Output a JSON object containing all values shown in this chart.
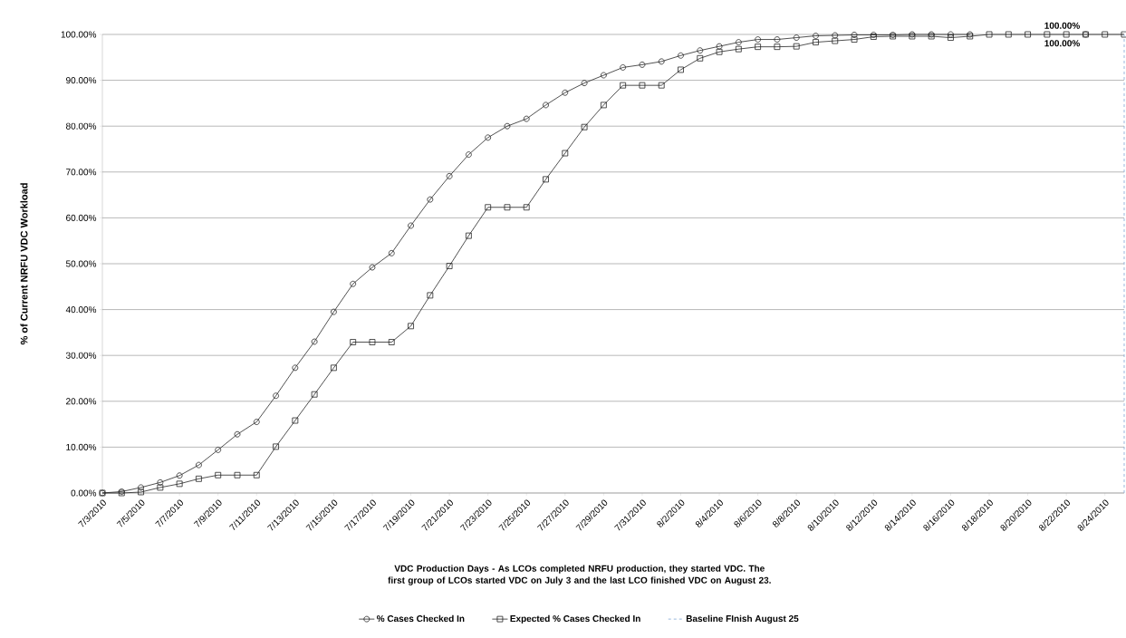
{
  "chart_data": {
    "type": "line",
    "ylabel": "% of Current  NRFU VDC Workload",
    "xlabel": "VDC Production  Days - As LCOs completed  NRFU production, they started VDC.  The first group of LCOs started VDC on July 3 and the last LCO finished VDC on August 23.",
    "x": [
      "2010-07-03",
      "2010-07-04",
      "2010-07-05",
      "2010-07-06",
      "2010-07-07",
      "2010-07-08",
      "2010-07-09",
      "2010-07-10",
      "2010-07-11",
      "2010-07-12",
      "2010-07-13",
      "2010-07-14",
      "2010-07-15",
      "2010-07-16",
      "2010-07-17",
      "2010-07-18",
      "2010-07-19",
      "2010-07-20",
      "2010-07-21",
      "2010-07-22",
      "2010-07-23",
      "2010-07-24",
      "2010-07-25",
      "2010-07-26",
      "2010-07-27",
      "2010-07-28",
      "2010-07-29",
      "2010-07-30",
      "2010-07-31",
      "2010-08-01",
      "2010-08-02",
      "2010-08-03",
      "2010-08-04",
      "2010-08-05",
      "2010-08-06",
      "2010-08-07",
      "2010-08-08",
      "2010-08-09",
      "2010-08-10",
      "2010-08-11",
      "2010-08-12",
      "2010-08-13",
      "2010-08-14",
      "2010-08-15",
      "2010-08-16",
      "2010-08-17",
      "2010-08-18",
      "2010-08-19",
      "2010-08-20",
      "2010-08-21",
      "2010-08-22",
      "2010-08-23",
      "2010-08-24",
      "2010-08-25"
    ],
    "series": [
      {
        "name": "% Cases Checked In",
        "color": "#262626",
        "marker": "circle",
        "values": [
          0,
          0.3,
          1.2,
          2.3,
          3.8,
          6.1,
          9.4,
          12.8,
          15.5,
          21.2,
          27.3,
          33.0,
          39.5,
          45.6,
          49.2,
          52.3,
          58.3,
          64.0,
          69.1,
          73.8,
          77.5,
          80.0,
          81.6,
          84.6,
          87.3,
          89.4,
          91.1,
          92.8,
          93.4,
          94.1,
          95.4,
          96.5,
          97.4,
          98.3,
          98.9,
          98.9,
          99.3,
          99.7,
          99.8,
          99.9,
          99.9,
          99.9,
          100,
          100,
          100,
          100,
          null,
          null,
          null,
          null,
          null,
          100,
          null,
          null
        ],
        "value_labels": [
          null,
          null,
          null,
          null,
          null,
          null,
          null,
          null,
          null,
          null,
          null,
          null,
          null,
          null,
          null,
          null,
          null,
          null,
          null,
          null,
          null,
          null,
          null,
          null,
          null,
          null,
          null,
          null,
          null,
          null,
          null,
          null,
          null,
          null,
          null,
          null,
          null,
          null,
          null,
          null,
          null,
          null,
          null,
          null,
          null,
          null,
          null,
          null,
          null,
          null,
          null,
          "100.00%",
          null,
          null
        ]
      },
      {
        "name": "Expected % Cases Checked In",
        "color": "#262626",
        "marker": "square",
        "values": [
          0,
          0,
          0.2,
          1.2,
          2.0,
          3.1,
          3.9,
          3.9,
          3.9,
          10.1,
          15.8,
          21.5,
          27.3,
          32.9,
          32.9,
          32.9,
          36.4,
          43.1,
          49.5,
          56.1,
          62.3,
          62.3,
          62.3,
          68.4,
          74.1,
          79.8,
          84.6,
          88.9,
          88.9,
          88.9,
          92.3,
          94.8,
          96.2,
          96.8,
          97.3,
          97.3,
          97.4,
          98.3,
          98.6,
          98.9,
          99.5,
          99.6,
          99.6,
          99.6,
          99.3,
          99.6,
          100,
          100,
          100,
          100,
          100,
          100,
          100,
          100
        ],
        "value_labels": [
          null,
          null,
          null,
          null,
          null,
          null,
          null,
          null,
          null,
          null,
          null,
          null,
          null,
          null,
          null,
          null,
          null,
          null,
          null,
          null,
          null,
          null,
          null,
          null,
          null,
          null,
          null,
          null,
          null,
          null,
          null,
          null,
          null,
          null,
          null,
          null,
          null,
          null,
          null,
          null,
          null,
          null,
          null,
          null,
          null,
          null,
          null,
          null,
          null,
          null,
          null,
          "100.00%",
          null,
          null
        ]
      }
    ],
    "xlim": [
      "2010-07-03",
      "2010-08-25"
    ],
    "xticks": [
      {
        "value": "2010-07-03",
        "label": "7/3/2010"
      },
      {
        "value": "2010-07-05",
        "label": "7/5/2010"
      },
      {
        "value": "2010-07-07",
        "label": "7/7/2010"
      },
      {
        "value": "2010-07-09",
        "label": "7/9/2010"
      },
      {
        "value": "2010-07-11",
        "label": "7/11/2010"
      },
      {
        "value": "2010-07-13",
        "label": "7/13/2010"
      },
      {
        "value": "2010-07-15",
        "label": "7/15/2010"
      },
      {
        "value": "2010-07-17",
        "label": "7/17/2010"
      },
      {
        "value": "2010-07-19",
        "label": "7/19/2010"
      },
      {
        "value": "2010-07-21",
        "label": "7/21/2010"
      },
      {
        "value": "2010-07-23",
        "label": "7/23/2010"
      },
      {
        "value": "2010-07-25",
        "label": "7/25/2010"
      },
      {
        "value": "2010-07-27",
        "label": "7/27/2010"
      },
      {
        "value": "2010-07-29",
        "label": "7/29/2010"
      },
      {
        "value": "2010-07-31",
        "label": "7/31/2010"
      },
      {
        "value": "2010-08-02",
        "label": "8/2/2010"
      },
      {
        "value": "2010-08-04",
        "label": "8/4/2010"
      },
      {
        "value": "2010-08-06",
        "label": "8/6/2010"
      },
      {
        "value": "2010-08-08",
        "label": "8/8/2010"
      },
      {
        "value": "2010-08-10",
        "label": "8/10/2010"
      },
      {
        "value": "2010-08-12",
        "label": "8/12/2010"
      },
      {
        "value": "2010-08-14",
        "label": "8/14/2010"
      },
      {
        "value": "2010-08-16",
        "label": "8/16/2010"
      },
      {
        "value": "2010-08-18",
        "label": "8/18/2010"
      },
      {
        "value": "2010-08-20",
        "label": "8/20/2010"
      },
      {
        "value": "2010-08-22",
        "label": "8/22/2010"
      },
      {
        "value": "2010-08-24",
        "label": "8/24/2010"
      }
    ],
    "ylim": [
      0,
      100
    ],
    "yticks": [
      {
        "value": 0,
        "label": "0.00%"
      },
      {
        "value": 10,
        "label": "10.00%"
      },
      {
        "value": 20,
        "label": "20.00%"
      },
      {
        "value": 30,
        "label": "30.00%"
      },
      {
        "value": 40,
        "label": "40.00%"
      },
      {
        "value": 50,
        "label": "50.00%"
      },
      {
        "value": 60,
        "label": "60.00%"
      },
      {
        "value": 70,
        "label": "70.00%"
      },
      {
        "value": 80,
        "label": "80.00%"
      },
      {
        "value": 90,
        "label": "90.00%"
      },
      {
        "value": 100,
        "label": "100.00%"
      }
    ],
    "ref_lines": [
      {
        "axis": "x",
        "value": "2010-08-25",
        "label": "Baseline FInish August 25",
        "color": "#7fa6d6",
        "line_style": "dashed"
      }
    ],
    "grid": "y",
    "legend": "bottom",
    "line_style": "solid"
  }
}
